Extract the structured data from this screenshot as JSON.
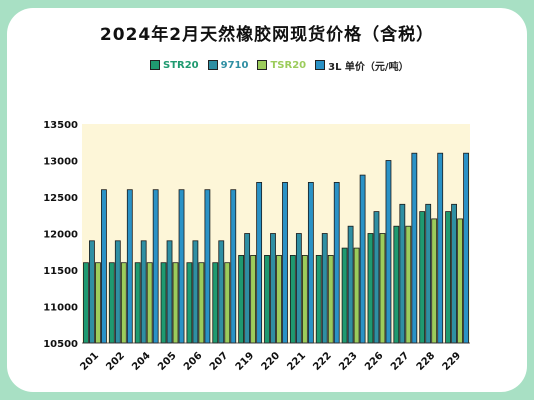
{
  "chart_data": {
    "type": "bar",
    "title": "2024年2月天然橡胶网现货价格（含税）",
    "categories": [
      "201",
      "202",
      "204",
      "205",
      "206",
      "207",
      "219",
      "220",
      "221",
      "222",
      "223",
      "226",
      "227",
      "228",
      "229"
    ],
    "series": [
      {
        "name": "STR20",
        "color": "#1f9a70",
        "values": [
          11600,
          11600,
          11600,
          11600,
          11600,
          11600,
          11700,
          11700,
          11700,
          11700,
          11800,
          12000,
          12100,
          12300,
          12300
        ]
      },
      {
        "name": "9710",
        "color": "#2f8fa3",
        "values": [
          11900,
          11900,
          11900,
          11900,
          11900,
          11900,
          12000,
          12000,
          12000,
          12000,
          12100,
          12300,
          12400,
          12400,
          12400
        ]
      },
      {
        "name": "TSR20",
        "color": "#9ccc5c",
        "values": [
          11600,
          11600,
          11600,
          11600,
          11600,
          11600,
          11700,
          11700,
          11700,
          11700,
          11800,
          12000,
          12100,
          12200,
          12200
        ]
      },
      {
        "name": "3L 单价（元/吨）",
        "color": "#2a92c6",
        "values": [
          12600,
          12600,
          12600,
          12600,
          12600,
          12600,
          12700,
          12700,
          12700,
          12700,
          12800,
          13000,
          13100,
          13100,
          13100
        ]
      }
    ],
    "yticks": [
      10500,
      11000,
      11500,
      12000,
      12500,
      13000,
      13500
    ],
    "ylim": [
      10500,
      13500
    ],
    "xlabel": "",
    "ylabel": "",
    "legend_position": "top",
    "grid": false
  },
  "colors": {
    "page_background": "#a8e0c4",
    "plot_background": "#fdf6d8",
    "legend_text": [
      "#1f9a70",
      "#2f8fa3",
      "#9ccc5c",
      "#222222"
    ]
  }
}
